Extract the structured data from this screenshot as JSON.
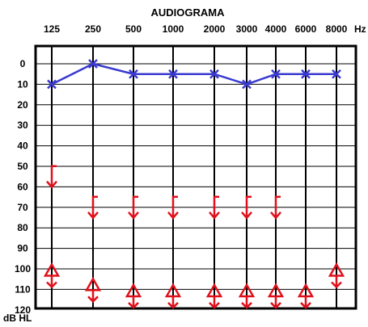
{
  "chart_data": {
    "type": "line",
    "title": "AUDIOGRAMA",
    "x_unit": "Hz",
    "y_unit": "dB HL",
    "categories": [
      "125",
      "250",
      "500",
      "1000",
      "2000",
      "3000",
      "4000",
      "6000",
      "8000"
    ],
    "y_ticks": [
      0,
      10,
      20,
      30,
      40,
      50,
      60,
      70,
      80,
      90,
      100,
      110,
      120
    ],
    "ylim": [
      120,
      0
    ],
    "y_inverted": true,
    "grid": true,
    "series": [
      {
        "marker": "x",
        "color": "#3a3ad0",
        "values": [
          10,
          0,
          5,
          5,
          5,
          10,
          5,
          5,
          5
        ]
      },
      {
        "marker": "bone-conduction-bracket-no-response",
        "color": "#e0101a",
        "x": [
          "125",
          "250",
          "500",
          "1000",
          "2000",
          "3000",
          "4000"
        ],
        "values": [
          55,
          70,
          70,
          70,
          70,
          70,
          70
        ]
      },
      {
        "marker": "triangle-no-response",
        "color": "#e0101a",
        "x": [
          "125",
          "250",
          "500",
          "1000",
          "2000",
          "3000",
          "4000",
          "6000",
          "8000"
        ],
        "values": [
          101,
          108,
          111,
          111,
          111,
          111,
          111,
          111,
          101
        ]
      }
    ]
  }
}
